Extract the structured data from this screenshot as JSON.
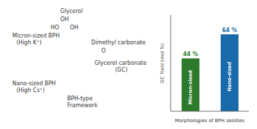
{
  "chart_data": {
    "type": "bar",
    "categories": [
      "Micron-sized",
      "Nano-sized"
    ],
    "values": [
      44,
      64
    ],
    "value_labels": [
      "44 %",
      "64 %"
    ],
    "data_labels": true,
    "colors": [
      "#2d7a2d",
      "#1a6aaa"
    ],
    "xlabel": "Morphologies of BPH zeolites",
    "ylabel": "GC Yield (mol %)",
    "ylim": [
      0,
      80
    ],
    "tick_labels": false,
    "annotations": [
      "Micron-sized BPH",
      "(High K⁺)",
      "Nano-sized BPH",
      "(High Cs⁺)",
      "Glycerol",
      "OH",
      "HO",
      "OH",
      "Dimethyl carbonate",
      "O",
      "Glycerol carbonate",
      "(GC)",
      "BPH-type",
      "Framework"
    ]
  }
}
